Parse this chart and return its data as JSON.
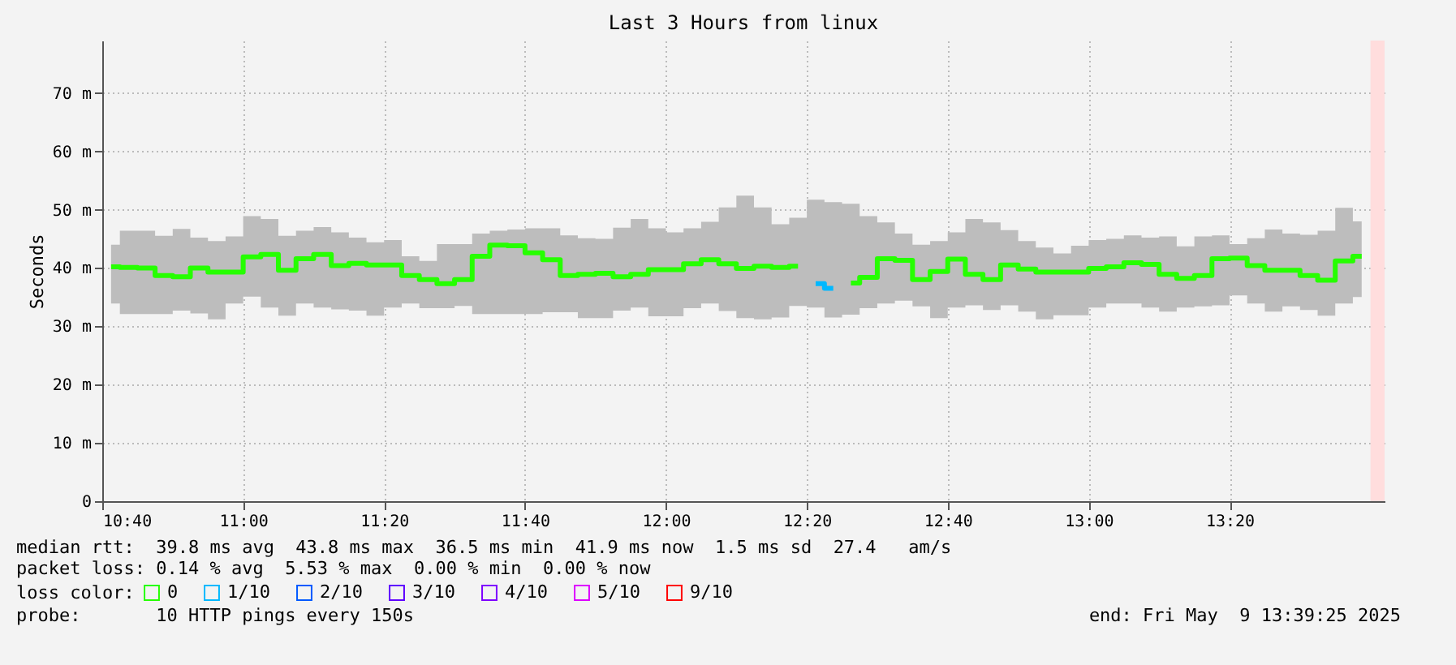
{
  "chart_data": {
    "type": "step",
    "title": "Last 3 Hours from linux",
    "ylabel": "Seconds",
    "legend_title": "loss color:",
    "annotations": [
      "median rtt:  39.8 ms avg  43.8 ms max  36.5 ms min  41.9 ms now  1.5 ms sd  27.4   am/s",
      "packet loss: 0.14 % avg  5.53 % max  0.00 % min  0.00 % now",
      "probe:       10 HTTP pings every 150s",
      "end: Fri May  9 13:39:25 2025"
    ],
    "x": [
      "2025-05-09T10:41:15",
      "2025-05-09T10:43:45",
      "2025-05-09T10:46:15",
      "2025-05-09T10:48:45",
      "2025-05-09T10:51:15",
      "2025-05-09T10:53:45",
      "2025-05-09T10:56:15",
      "2025-05-09T10:58:45",
      "2025-05-09T11:01:15",
      "2025-05-09T11:03:45",
      "2025-05-09T11:06:15",
      "2025-05-09T11:08:45",
      "2025-05-09T11:11:15",
      "2025-05-09T11:13:45",
      "2025-05-09T11:16:15",
      "2025-05-09T11:18:45",
      "2025-05-09T11:21:15",
      "2025-05-09T11:23:45",
      "2025-05-09T11:26:15",
      "2025-05-09T11:28:45",
      "2025-05-09T11:31:15",
      "2025-05-09T11:33:45",
      "2025-05-09T11:36:15",
      "2025-05-09T11:38:45",
      "2025-05-09T11:41:15",
      "2025-05-09T11:43:45",
      "2025-05-09T11:46:15",
      "2025-05-09T11:48:45",
      "2025-05-09T11:51:15",
      "2025-05-09T11:53:45",
      "2025-05-09T11:56:15",
      "2025-05-09T11:58:45",
      "2025-05-09T12:01:15",
      "2025-05-09T12:03:45",
      "2025-05-09T12:06:15",
      "2025-05-09T12:08:45",
      "2025-05-09T12:11:15",
      "2025-05-09T12:13:45",
      "2025-05-09T12:16:15",
      "2025-05-09T12:18:45",
      "2025-05-09T12:21:15",
      "2025-05-09T12:23:45",
      "2025-05-09T12:26:15",
      "2025-05-09T12:28:45",
      "2025-05-09T12:31:15",
      "2025-05-09T12:33:45",
      "2025-05-09T12:36:15",
      "2025-05-09T12:38:45",
      "2025-05-09T12:41:15",
      "2025-05-09T12:43:45",
      "2025-05-09T12:46:15",
      "2025-05-09T12:48:45",
      "2025-05-09T12:51:15",
      "2025-05-09T12:53:45",
      "2025-05-09T12:56:15",
      "2025-05-09T12:58:45",
      "2025-05-09T13:01:15",
      "2025-05-09T13:03:45",
      "2025-05-09T13:06:15",
      "2025-05-09T13:08:45",
      "2025-05-09T13:11:15",
      "2025-05-09T13:13:45",
      "2025-05-09T13:16:15",
      "2025-05-09T13:18:45",
      "2025-05-09T13:21:15",
      "2025-05-09T13:23:45",
      "2025-05-09T13:26:15",
      "2025-05-09T13:28:45",
      "2025-05-09T13:31:15",
      "2025-05-09T13:33:45",
      "2025-05-09T13:36:15",
      "2025-05-09T13:38:45"
    ],
    "series": [
      {
        "name": "0",
        "color": "#26ff00",
        "values": [
          40.2,
          40.1,
          40.0,
          38.7,
          38.5,
          40.0,
          39.3,
          39.3,
          41.9,
          42.3,
          39.6,
          41.6,
          42.3,
          40.4,
          40.8,
          40.5,
          40.5,
          38.7,
          38.0,
          37.3,
          38.0,
          42.0,
          43.9,
          43.8,
          42.6,
          41.4,
          38.7,
          38.9,
          39.1,
          38.5,
          38.9,
          39.7,
          39.7,
          40.7,
          41.4,
          40.7,
          39.9,
          40.3,
          40.1,
          40.3,
          null,
          null,
          37.4,
          38.4,
          41.6,
          41.3,
          38.0,
          39.4,
          41.5,
          38.9,
          38.0,
          40.5,
          39.8,
          39.3,
          39.3,
          39.3,
          39.9,
          40.2,
          40.9,
          40.6,
          38.9,
          38.2,
          38.7,
          41.6,
          41.7,
          40.4,
          39.6,
          39.6,
          38.7,
          37.9,
          41.2,
          42.0
        ],
        "lower": [
          33.9,
          32.1,
          32.1,
          32.1,
          32.7,
          32.2,
          31.2,
          33.9,
          35.1,
          33.2,
          31.8,
          33.9,
          33.2,
          32.9,
          32.7,
          31.8,
          33.2,
          33.9,
          33.1,
          33.1,
          33.5,
          32.1,
          32.1,
          32.1,
          32.1,
          32.4,
          32.4,
          31.4,
          31.4,
          32.7,
          33.2,
          31.7,
          31.7,
          33.1,
          33.9,
          32.6,
          31.4,
          31.2,
          31.5,
          33.5,
          33.2,
          31.5,
          32.0,
          33.1,
          33.9,
          34.4,
          33.4,
          31.4,
          33.2,
          33.6,
          32.8,
          33.6,
          32.5,
          31.2,
          31.9,
          31.9,
          33.2,
          33.9,
          33.9,
          33.2,
          32.5,
          33.2,
          33.4,
          33.6,
          35.3,
          33.9,
          32.5,
          33.4,
          32.8,
          31.8,
          33.9,
          35.0
        ],
        "upper": [
          44.0,
          46.4,
          46.4,
          45.5,
          46.7,
          45.2,
          44.6,
          45.4,
          48.9,
          48.4,
          45.5,
          46.4,
          47.0,
          46.1,
          45.2,
          44.4,
          44.8,
          42.0,
          41.2,
          44.1,
          44.1,
          45.9,
          46.4,
          46.6,
          46.8,
          46.8,
          45.6,
          45.1,
          45.0,
          46.9,
          48.4,
          46.8,
          46.1,
          46.8,
          47.9,
          50.4,
          52.4,
          50.4,
          47.5,
          48.6,
          51.7,
          51.3,
          51.0,
          48.9,
          47.8,
          45.9,
          44.0,
          44.6,
          46.1,
          48.4,
          47.8,
          46.5,
          44.6,
          43.5,
          42.5,
          43.8,
          44.8,
          45.0,
          45.6,
          45.2,
          45.4,
          43.7,
          45.4,
          45.6,
          44.1,
          45.1,
          46.6,
          45.9,
          45.7,
          46.4,
          50.3,
          48.0
        ]
      },
      {
        "name": "1/10",
        "color": "#00b8ff",
        "values": [
          null,
          null,
          null,
          null,
          null,
          null,
          null,
          null,
          null,
          null,
          null,
          null,
          null,
          null,
          null,
          null,
          null,
          null,
          null,
          null,
          null,
          null,
          null,
          null,
          null,
          null,
          null,
          null,
          null,
          null,
          null,
          null,
          null,
          null,
          null,
          null,
          null,
          null,
          null,
          null,
          37.3,
          36.5,
          null,
          null,
          null,
          null,
          null,
          null,
          null,
          null,
          null,
          null,
          null,
          null,
          null,
          null,
          null,
          null,
          null,
          null,
          null,
          null,
          null,
          null,
          null,
          null,
          null,
          null,
          null,
          null,
          null,
          null
        ]
      },
      {
        "name": "2/10",
        "color": "#0059ff",
        "values": [
          null,
          null,
          null,
          null,
          null,
          null,
          null,
          null,
          null,
          null,
          null,
          null,
          null,
          null,
          null,
          null,
          null,
          null,
          null,
          null,
          null,
          null,
          null,
          null,
          null,
          null,
          null,
          null,
          null,
          null,
          null,
          null,
          null,
          null,
          null,
          null,
          null,
          null,
          null,
          null,
          null,
          null,
          null,
          null,
          null,
          null,
          null,
          null,
          null,
          null,
          null,
          null,
          null,
          null,
          null,
          null,
          null,
          null,
          null,
          null,
          null,
          null,
          null,
          null,
          null,
          null,
          null,
          null,
          null,
          null,
          null,
          null
        ]
      },
      {
        "name": "3/10",
        "color": "#5e00ff",
        "values": [
          null,
          null,
          null,
          null,
          null,
          null,
          null,
          null,
          null,
          null,
          null,
          null,
          null,
          null,
          null,
          null,
          null,
          null,
          null,
          null,
          null,
          null,
          null,
          null,
          null,
          null,
          null,
          null,
          null,
          null,
          null,
          null,
          null,
          null,
          null,
          null,
          null,
          null,
          null,
          null,
          null,
          null,
          null,
          null,
          null,
          null,
          null,
          null,
          null,
          null,
          null,
          null,
          null,
          null,
          null,
          null,
          null,
          null,
          null,
          null,
          null,
          null,
          null,
          null,
          null,
          null,
          null,
          null,
          null,
          null,
          null,
          null
        ]
      },
      {
        "name": "4/10",
        "color": "#7e00ff",
        "values": [
          null,
          null,
          null,
          null,
          null,
          null,
          null,
          null,
          null,
          null,
          null,
          null,
          null,
          null,
          null,
          null,
          null,
          null,
          null,
          null,
          null,
          null,
          null,
          null,
          null,
          null,
          null,
          null,
          null,
          null,
          null,
          null,
          null,
          null,
          null,
          null,
          null,
          null,
          null,
          null,
          null,
          null,
          null,
          null,
          null,
          null,
          null,
          null,
          null,
          null,
          null,
          null,
          null,
          null,
          null,
          null,
          null,
          null,
          null,
          null,
          null,
          null,
          null,
          null,
          null,
          null,
          null,
          null,
          null,
          null,
          null,
          null
        ]
      },
      {
        "name": "5/10",
        "color": "#dd00ff",
        "values": [
          null,
          null,
          null,
          null,
          null,
          null,
          null,
          null,
          null,
          null,
          null,
          null,
          null,
          null,
          null,
          null,
          null,
          null,
          null,
          null,
          null,
          null,
          null,
          null,
          null,
          null,
          null,
          null,
          null,
          null,
          null,
          null,
          null,
          null,
          null,
          null,
          null,
          null,
          null,
          null,
          null,
          null,
          null,
          null,
          null,
          null,
          null,
          null,
          null,
          null,
          null,
          null,
          null,
          null,
          null,
          null,
          null,
          null,
          null,
          null,
          null,
          null,
          null,
          null,
          null,
          null,
          null,
          null,
          null,
          null,
          null,
          null
        ]
      },
      {
        "name": "9/10",
        "color": "#ff0000",
        "values": [
          null,
          null,
          null,
          null,
          null,
          null,
          null,
          null,
          null,
          null,
          null,
          null,
          null,
          null,
          null,
          null,
          null,
          null,
          null,
          null,
          null,
          null,
          null,
          null,
          null,
          null,
          null,
          null,
          null,
          null,
          null,
          null,
          null,
          null,
          null,
          null,
          null,
          null,
          null,
          null,
          null,
          null,
          null,
          null,
          null,
          null,
          null,
          null,
          null,
          null,
          null,
          null,
          null,
          null,
          null,
          null,
          null,
          null,
          null,
          null,
          null,
          null,
          null,
          null,
          null,
          null,
          null,
          null,
          null,
          null,
          null,
          null
        ]
      }
    ],
    "xlim": [
      "2025-05-09T10:40",
      "2025-05-09T13:42"
    ],
    "xticks": [
      {
        "value": "2025-05-09T10:40",
        "label": "10:40"
      },
      {
        "value": "2025-05-09T11:00",
        "label": "11:00"
      },
      {
        "value": "2025-05-09T11:20",
        "label": "11:20"
      },
      {
        "value": "2025-05-09T11:40",
        "label": "11:40"
      },
      {
        "value": "2025-05-09T12:00",
        "label": "12:00"
      },
      {
        "value": "2025-05-09T12:20",
        "label": "12:20"
      },
      {
        "value": "2025-05-09T12:40",
        "label": "12:40"
      },
      {
        "value": "2025-05-09T13:00",
        "label": "13:00"
      },
      {
        "value": "2025-05-09T13:20",
        "label": "13:20"
      }
    ],
    "ylim": [
      0,
      79
    ],
    "yticks": [
      {
        "value": 0,
        "label": "0"
      },
      {
        "value": 10,
        "label": "10 m"
      },
      {
        "value": 20,
        "label": "20 m"
      },
      {
        "value": 30,
        "label": "30 m"
      },
      {
        "value": 40,
        "label": "40 m"
      },
      {
        "value": 50,
        "label": "50 m"
      },
      {
        "value": 60,
        "label": "60 m"
      },
      {
        "value": 70,
        "label": "70 m"
      }
    ],
    "bands": [
      {
        "axis": "x",
        "from": "2025-05-09T13:40",
        "to": "2025-05-09T13:42",
        "color": "#ffdddd"
      }
    ],
    "grid": true,
    "legend": "bottom left"
  }
}
